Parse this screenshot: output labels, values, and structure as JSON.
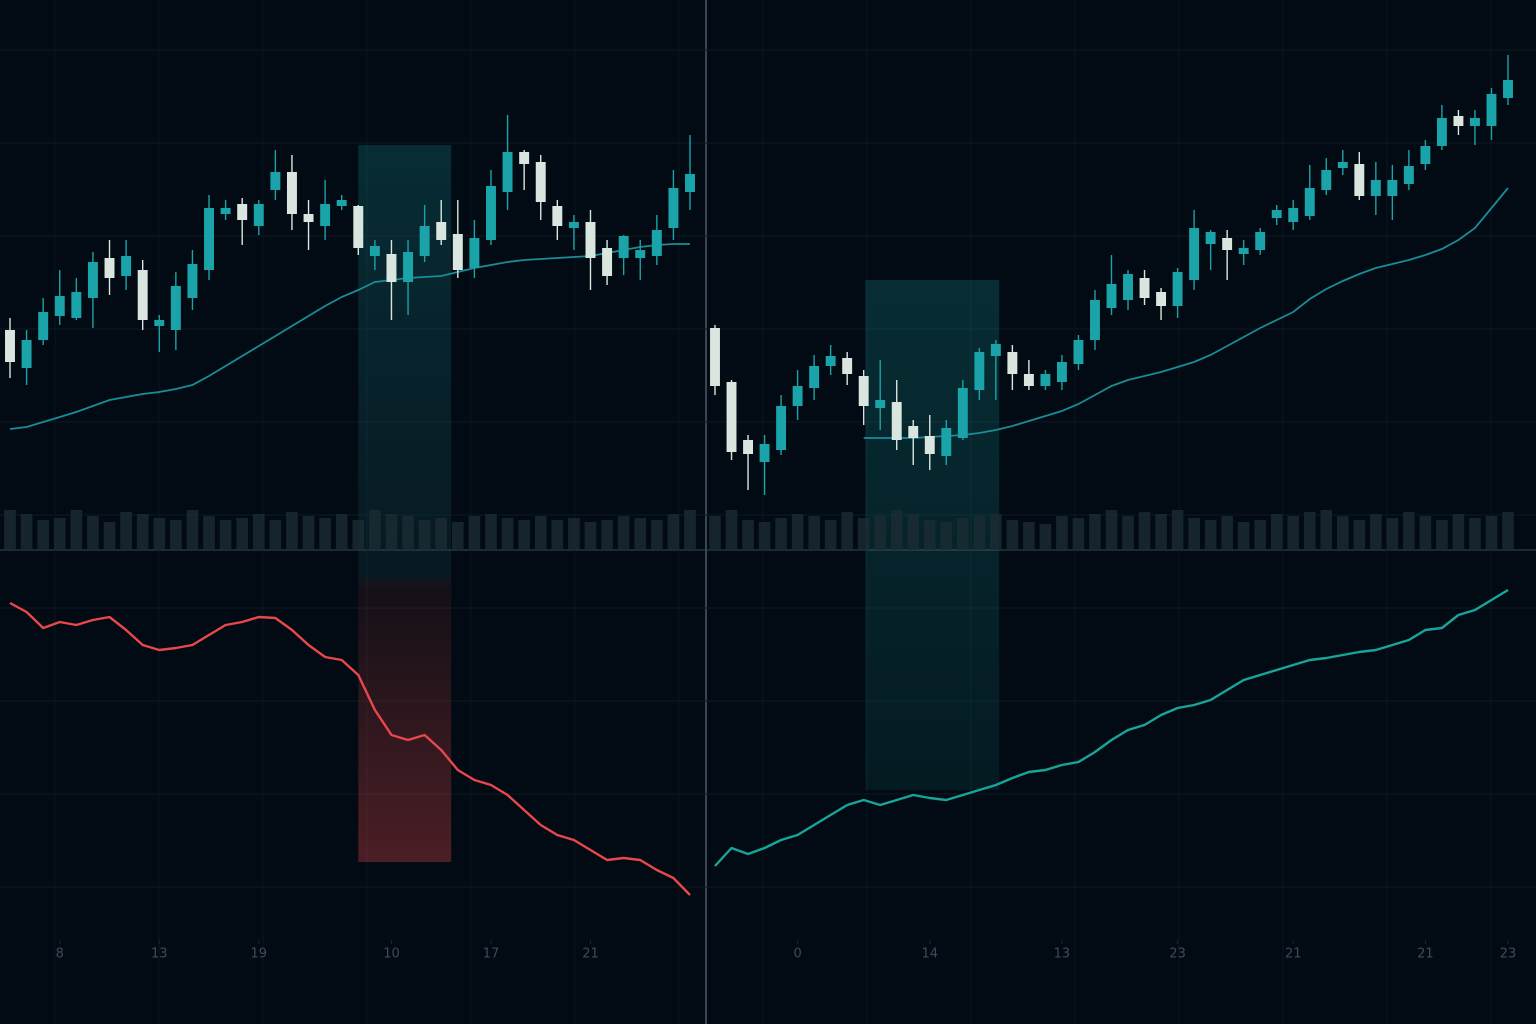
{
  "chart_data": [
    {
      "type": "candlestick",
      "up_color": "#1aa3a8",
      "down_color": "#d9e6df",
      "ma_color": "#1a8c96",
      "volume_color": "#1c2c35",
      "ylim": [
        0,
        500
      ],
      "volume_lim": [
        0,
        60
      ],
      "indicator_ylim": [
        0,
        370
      ],
      "grid": true,
      "open": [
        210,
        172,
        200,
        224,
        222,
        242,
        282,
        264,
        270,
        214,
        210,
        242,
        270,
        326,
        336,
        314,
        350,
        368,
        326,
        314,
        334,
        334,
        284,
        286,
        258,
        284,
        318,
        306,
        272,
        300,
        348,
        388,
        378,
        334,
        312,
        318,
        292,
        282,
        282,
        284,
        312,
        348
      ],
      "high": [
        222,
        210,
        242,
        270,
        262,
        288,
        300,
        300,
        280,
        225,
        268,
        290,
        345,
        340,
        342,
        340,
        390,
        385,
        340,
        360,
        345,
        335,
        300,
        300,
        300,
        335,
        340,
        340,
        320,
        370,
        425,
        390,
        385,
        340,
        325,
        330,
        300,
        305,
        300,
        325,
        370,
        405
      ],
      "low": [
        162,
        155,
        195,
        215,
        220,
        212,
        245,
        250,
        210,
        188,
        190,
        230,
        260,
        320,
        295,
        305,
        340,
        310,
        290,
        300,
        330,
        285,
        270,
        220,
        225,
        278,
        295,
        262,
        262,
        295,
        330,
        350,
        320,
        300,
        290,
        250,
        255,
        265,
        260,
        275,
        300,
        330
      ],
      "close": [
        178,
        200,
        228,
        244,
        248,
        278,
        262,
        284,
        220,
        220,
        254,
        276,
        332,
        332,
        320,
        336,
        368,
        326,
        318,
        336,
        340,
        292,
        294,
        258,
        288,
        314,
        300,
        270,
        302,
        354,
        388,
        376,
        338,
        314,
        318,
        282,
        264,
        304,
        290,
        310,
        352,
        366
      ],
      "ma": [
        111,
        113,
        118,
        123,
        128,
        134,
        140,
        143,
        146,
        148,
        151,
        155,
        164,
        174,
        184,
        194,
        204,
        214,
        224,
        234,
        243,
        250,
        258,
        260,
        262,
        263,
        264,
        268,
        272,
        275,
        278,
        280,
        281,
        282,
        283,
        284,
        287,
        290,
        293,
        295,
        296,
        296
      ],
      "volume": [
        40,
        36,
        30,
        32,
        40,
        34,
        28,
        38,
        36,
        32,
        30,
        40,
        34,
        30,
        32,
        36,
        30,
        38,
        34,
        32,
        36,
        30,
        40,
        36,
        34,
        30,
        32,
        28,
        34,
        36,
        32,
        30,
        34,
        30,
        32,
        28,
        30,
        34,
        32,
        30,
        36,
        40
      ],
      "indicator": {
        "color": "#e8474b",
        "values": [
          327,
          318,
          302,
          308,
          305,
          310,
          313,
          300,
          285,
          280,
          282,
          285,
          295,
          305,
          308,
          313,
          312,
          300,
          285,
          273,
          270,
          255,
          220,
          195,
          190,
          195,
          180,
          160,
          150,
          145,
          135,
          120,
          105,
          95,
          90,
          80,
          70,
          72,
          70,
          60,
          52,
          35
        ]
      },
      "highlight": [
        21,
        26.6
      ],
      "highlight_color": "#e8474b",
      "xticks": [
        {
          "value": 3,
          "label": "8"
        },
        {
          "value": 9,
          "label": "13"
        },
        {
          "value": 15,
          "label": "19"
        },
        {
          "value": 23,
          "label": "10"
        },
        {
          "value": 29,
          "label": "17"
        },
        {
          "value": 35,
          "label": "21"
        }
      ]
    },
    {
      "type": "candlestick",
      "up_color": "#1aa3a8",
      "down_color": "#d9e6df",
      "ma_color": "#1a8c96",
      "volume_color": "#1c2c35",
      "ylim": [
        0,
        500
      ],
      "volume_lim": [
        0,
        60
      ],
      "indicator_ylim": [
        0,
        370
      ],
      "grid": true,
      "open": [
        212,
        158,
        100,
        78,
        90,
        134,
        152,
        174,
        182,
        164,
        132,
        138,
        114,
        104,
        84,
        102,
        150,
        184,
        188,
        166,
        154,
        158,
        176,
        200,
        232,
        240,
        262,
        248,
        234,
        260,
        296,
        302,
        286,
        290,
        322,
        318,
        324,
        350,
        372,
        376,
        344,
        344,
        356,
        376,
        394,
        424,
        414,
        414,
        442
      ],
      "high": [
        215,
        160,
        105,
        105,
        145,
        170,
        185,
        195,
        188,
        170,
        180,
        160,
        120,
        125,
        120,
        160,
        192,
        200,
        195,
        180,
        170,
        185,
        205,
        250,
        285,
        270,
        270,
        252,
        272,
        330,
        310,
        310,
        300,
        312,
        335,
        340,
        375,
        382,
        390,
        388,
        378,
        375,
        390,
        400,
        435,
        430,
        430,
        452,
        485
      ],
      "low": [
        145,
        80,
        50,
        45,
        85,
        120,
        140,
        165,
        155,
        115,
        110,
        90,
        75,
        70,
        75,
        100,
        140,
        140,
        150,
        150,
        150,
        150,
        170,
        190,
        225,
        230,
        235,
        220,
        222,
        250,
        270,
        260,
        275,
        285,
        315,
        310,
        320,
        345,
        365,
        340,
        325,
        320,
        350,
        370,
        390,
        405,
        395,
        400,
        435
      ],
      "close": [
        154,
        88,
        86,
        96,
        134,
        154,
        174,
        184,
        166,
        134,
        140,
        100,
        102,
        86,
        112,
        152,
        188,
        196,
        166,
        154,
        166,
        178,
        200,
        240,
        256,
        266,
        242,
        234,
        268,
        312,
        308,
        290,
        292,
        308,
        330,
        332,
        352,
        370,
        378,
        344,
        360,
        360,
        374,
        394,
        422,
        414,
        422,
        446,
        460
      ],
      "ma": [
        null,
        null,
        null,
        null,
        null,
        null,
        null,
        null,
        null,
        102,
        102,
        102,
        102,
        103,
        104,
        105,
        107,
        110,
        114,
        119,
        124,
        129,
        136,
        145,
        154,
        160,
        164,
        168,
        173,
        178,
        185,
        194,
        203,
        212,
        220,
        228,
        241,
        251,
        259,
        266,
        272,
        276,
        280,
        285,
        291,
        300,
        312,
        332,
        352
      ],
      "volume": [
        34,
        40,
        30,
        28,
        32,
        36,
        34,
        30,
        38,
        32,
        34,
        40,
        36,
        30,
        28,
        32,
        34,
        36,
        30,
        28,
        26,
        34,
        32,
        36,
        40,
        34,
        38,
        36,
        40,
        32,
        30,
        34,
        28,
        30,
        36,
        34,
        38,
        40,
        34,
        30,
        36,
        32,
        38,
        34,
        30,
        36,
        32,
        34,
        38
      ],
      "indicator": {
        "color": "#17a59a",
        "values": [
          64,
          82,
          76,
          82,
          90,
          95,
          105,
          115,
          125,
          130,
          125,
          130,
          135,
          132,
          130,
          135,
          140,
          145,
          152,
          158,
          160,
          165,
          168,
          178,
          190,
          200,
          205,
          215,
          222,
          225,
          230,
          240,
          250,
          255,
          260,
          265,
          270,
          272,
          275,
          278,
          280,
          285,
          290,
          300,
          302,
          315,
          320,
          330,
          340
        ]
      },
      "highlight": [
        9.1,
        17.2
      ],
      "highlight_color": "#1aa3a8",
      "xticks": [
        {
          "value": 5,
          "label": "0"
        },
        {
          "value": 13,
          "label": "14"
        },
        {
          "value": 21,
          "label": "13"
        },
        {
          "value": 28,
          "label": "23"
        },
        {
          "value": 35,
          "label": "21"
        },
        {
          "value": 43,
          "label": "21"
        },
        {
          "value": 48,
          "label": "23"
        }
      ]
    }
  ]
}
